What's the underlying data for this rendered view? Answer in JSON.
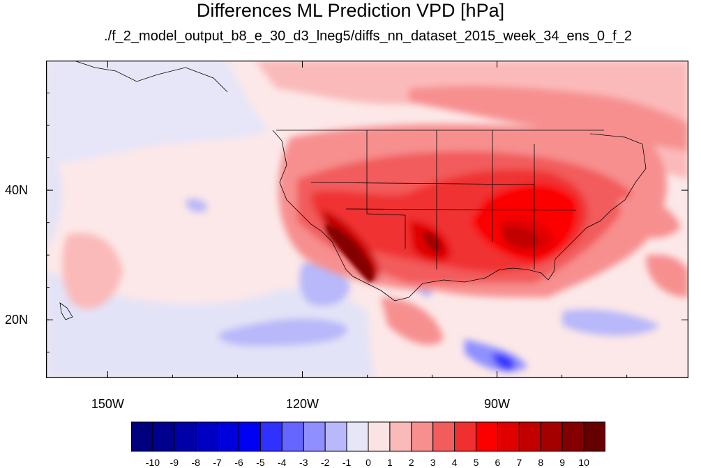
{
  "title": "Differences ML Prediction VPD [hPa]",
  "subtitle": "./f_2_model_output_b8_e_30_d3_lneg5/diffs_nn_dataset_2015_week_34_ens_0_f_2",
  "map": {
    "lat_labels": [
      {
        "text": "40N",
        "value": 40
      },
      {
        "text": "20N",
        "value": 20
      }
    ],
    "lon_labels": [
      {
        "text": "150W",
        "value": -150
      },
      {
        "text": "120W",
        "value": -120
      },
      {
        "text": "90W",
        "value": -90
      }
    ],
    "extent": {
      "lon_min": -159.5,
      "lon_max": -60.5,
      "lat_min": 11,
      "lat_max": 60
    }
  },
  "colorbar": {
    "levels": [
      "-10",
      "-9",
      "-8",
      "-7",
      "-6",
      "-5",
      "-4",
      "-3",
      "-2",
      "-1",
      "0",
      "1",
      "2",
      "3",
      "4",
      "5",
      "6",
      "7",
      "8",
      "9",
      "10"
    ],
    "colors": [
      "#00007f",
      "#00008f",
      "#0000a8",
      "#0000c4",
      "#0000dd",
      "#0000f5",
      "#3030ff",
      "#6565ff",
      "#8f8fff",
      "#b8b8fa",
      "#e6e6f8",
      "#fce3e3",
      "#fbbaba",
      "#f78f8f",
      "#f25c5c",
      "#f03030",
      "#fc0000",
      "#e00000",
      "#c20000",
      "#a40000",
      "#840000",
      "#660000"
    ]
  }
}
